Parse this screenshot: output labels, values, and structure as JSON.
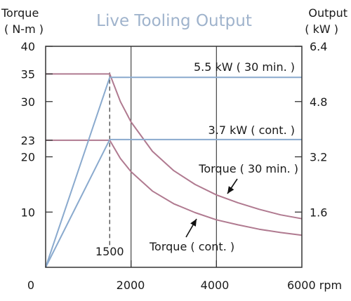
{
  "chart_data": {
    "type": "line",
    "title": "Live Tooling Output",
    "left_axis": {
      "label_line1": "Torque",
      "label_line2": "( N-m )",
      "ylim": [
        0,
        40
      ],
      "ticks": [
        10,
        20,
        23,
        30,
        35,
        40
      ]
    },
    "right_axis": {
      "label_line1": "Output",
      "label_line2": "( kW )",
      "ylim": [
        0,
        6.4
      ],
      "ticks": [
        {
          "value": 1.6,
          "label": "1.6"
        },
        {
          "value": 3.2,
          "label": "3.2"
        },
        {
          "value": 4.8,
          "label": "4.8"
        },
        {
          "value": 6.4,
          "label": "6.4"
        }
      ]
    },
    "x_axis": {
      "xlim": [
        0,
        6000
      ],
      "ticks": [
        {
          "value": 0,
          "label": "0"
        },
        {
          "value": 2000,
          "label": "2000"
        },
        {
          "value": 4000,
          "label": "4000"
        },
        {
          "value": 6000,
          "label": "6000 rpm"
        }
      ],
      "gridlines": [
        2000,
        4000
      ]
    },
    "reference_line": {
      "x": 1500,
      "label": "1500"
    },
    "colors": {
      "torque": "#b07a90",
      "output": "#8aaace",
      "axes": "#333333"
    },
    "series": [
      {
        "name": "Torque ( 30 min. )",
        "axis": "left",
        "kind": "torque",
        "x": [
          0,
          1500,
          1750,
          2000,
          2500,
          3000,
          3500,
          4000,
          4500,
          5000,
          5500,
          6000
        ],
        "y": [
          35,
          35,
          30,
          26.3,
          21.0,
          17.5,
          15.0,
          13.1,
          11.7,
          10.5,
          9.5,
          8.8
        ]
      },
      {
        "name": "Torque ( cont. )",
        "axis": "left",
        "kind": "torque",
        "x": [
          0,
          1500,
          1750,
          2000,
          2500,
          3000,
          3500,
          4000,
          4500,
          5000,
          5500,
          6000
        ],
        "y": [
          23,
          23,
          19.7,
          17.3,
          13.8,
          11.5,
          9.9,
          8.6,
          7.7,
          6.9,
          6.3,
          5.8
        ]
      },
      {
        "name": "5.5 kW ( 30 min. )",
        "axis": "right",
        "kind": "output",
        "x": [
          0,
          1500,
          6000
        ],
        "y": [
          0,
          5.5,
          5.5
        ]
      },
      {
        "name": "3.7 kW ( cont. )",
        "axis": "right",
        "kind": "output",
        "x": [
          0,
          1500,
          6000
        ],
        "y": [
          0,
          3.7,
          3.7
        ]
      }
    ],
    "annotations": [
      {
        "text": "5.5 kW ( 30 min. )",
        "series": 2
      },
      {
        "text": "3.7 kW ( cont. )",
        "series": 3
      },
      {
        "text": "Torque ( 30 min. )",
        "series": 0,
        "arrow_to_x": 4300
      },
      {
        "text": "Torque ( cont. )",
        "series": 1,
        "arrow_to_x": 3600
      }
    ]
  }
}
